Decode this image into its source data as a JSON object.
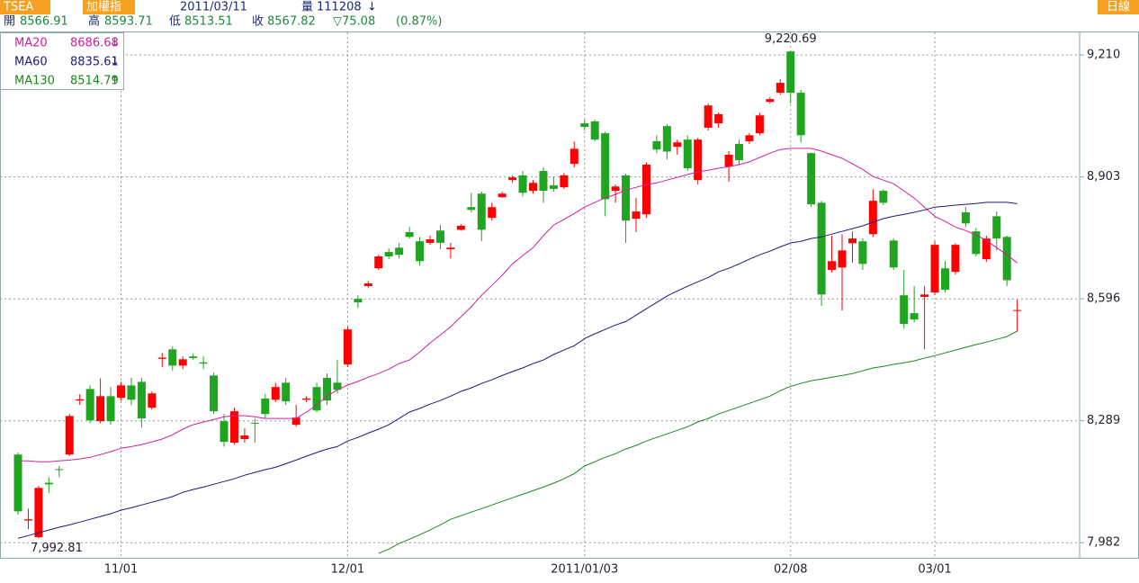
{
  "header": {
    "symbol": "TSEA",
    "index_name": "加權指",
    "date": "2011/03/11",
    "volume_label": "量",
    "volume": 111208,
    "volume_trend": "↓",
    "open_label": "開",
    "high_label": "高",
    "low_label": "低",
    "close_label": "收",
    "change": "▽75.08",
    "change_pct": "(0.87%)",
    "period": "日線"
  },
  "chart_data": {
    "type": "candlestick",
    "categories": [
      null,
      null,
      null,
      null,
      null,
      null,
      null,
      null,
      null,
      null,
      "11/01",
      null,
      null,
      null,
      null,
      null,
      null,
      null,
      null,
      null,
      null,
      null,
      null,
      null,
      null,
      null,
      null,
      null,
      null,
      null,
      null,
      null,
      "12/01",
      null,
      null,
      null,
      null,
      null,
      null,
      null,
      null,
      null,
      null,
      null,
      null,
      null,
      null,
      null,
      null,
      null,
      null,
      null,
      null,
      null,
      null,
      "2011/01/03",
      null,
      null,
      null,
      null,
      null,
      null,
      null,
      null,
      null,
      null,
      null,
      null,
      null,
      null,
      null,
      null,
      null,
      null,
      null,
      "02/08",
      null,
      null,
      null,
      null,
      null,
      null,
      null,
      null,
      null,
      null,
      null,
      null,
      null,
      "03/01",
      null,
      null,
      null,
      null,
      null,
      null,
      null,
      null
    ],
    "open": [
      8204,
      8038,
      7996,
      8133,
      8167,
      8204,
      8340,
      8369,
      8288,
      8351,
      8347,
      8378,
      8387,
      8322,
      8445,
      8469,
      8428,
      8451,
      8436,
      8403,
      8288,
      8234,
      8243,
      8284,
      8345,
      8342,
      8385,
      8279,
      8342,
      8374,
      8397,
      8385,
      8431,
      8596,
      8628,
      8673,
      8714,
      8725,
      8764,
      8741,
      8737,
      8768,
      8721,
      8770,
      8827,
      8861,
      8800,
      8852,
      8895,
      8907,
      8868,
      8918,
      8882,
      8877,
      8936,
      9038,
      9043,
      9013,
      8868,
      8907,
      8798,
      8809,
      8993,
      9031,
      8979,
      8997,
      8895,
      9027,
      9038,
      8929,
      8986,
      8993,
      9013,
      9092,
      9115,
      9219,
      9115,
      8963,
      8838,
      8669,
      8675,
      8736,
      8741,
      8759,
      8868,
      8743,
      8605,
      8560,
      8601,
      8612,
      8673,
      8664,
      8814,
      8766,
      8696,
      8804,
      8752,
      8566.91
    ],
    "high": [
      8209,
      8068,
      8125,
      8147,
      8175,
      8306,
      8356,
      8378,
      8396,
      8374,
      8387,
      8397,
      8397,
      8363,
      8460,
      8476,
      8451,
      8458,
      8451,
      8410,
      8306,
      8322,
      8270,
      8295,
      8356,
      8385,
      8397,
      8329,
      8351,
      8385,
      8408,
      8442,
      8526,
      8605,
      8641,
      8707,
      8723,
      8737,
      8777,
      8752,
      8755,
      8782,
      8737,
      8784,
      8863,
      8866,
      8838,
      8866,
      8907,
      8918,
      8895,
      8927,
      8904,
      8913,
      8992,
      9047,
      9047,
      9017,
      8884,
      8911,
      8850,
      8940,
      9008,
      9036,
      8997,
      9008,
      9002,
      9088,
      9065,
      8968,
      8997,
      9013,
      9065,
      9104,
      9149,
      9220.69,
      9122,
      8963,
      8843,
      8755,
      8759,
      8766,
      8748,
      8872,
      8872,
      8748,
      8669,
      8628,
      8628,
      8741,
      8691,
      8736,
      8827,
      8775,
      8755,
      8816,
      8755,
      8593.71
    ],
    "low": [
      8052,
      8016,
      7992.81,
      8107,
      8147,
      8200,
      8329,
      8283,
      8283,
      8279,
      8340,
      8329,
      8272,
      8317,
      8424,
      8415,
      8419,
      8442,
      8419,
      8306,
      8224,
      8229,
      8234,
      8234,
      8295,
      8336,
      8329,
      8274,
      8336,
      8311,
      8329,
      8358,
      8424,
      8573,
      8623,
      8669,
      8696,
      8698,
      8748,
      8680,
      8732,
      8721,
      8698,
      8768,
      8814,
      8741,
      8793,
      8850,
      8888,
      8854,
      8861,
      8838,
      8866,
      8873,
      8927,
      9020,
      8993,
      8804,
      8838,
      8737,
      8764,
      8800,
      8963,
      8947,
      8959,
      8918,
      8884,
      9020,
      9027,
      8891,
      8934,
      8986,
      9008,
      9088,
      9110,
      9088,
      8990,
      8827,
      8578,
      8662,
      8567,
      8687,
      8669,
      8752,
      8832,
      8669,
      8521,
      8537,
      8469,
      8605,
      8612,
      8657,
      8777,
      8703,
      8689,
      8718,
      8628,
      8513.51
    ],
    "close": [
      8061,
      8041,
      8120,
      8129,
      8165,
      8301,
      8343,
      8290,
      8351,
      8288,
      8378,
      8342,
      8295,
      8358,
      8448,
      8428,
      8444,
      8447,
      8433,
      8313,
      8236,
      8313,
      8252,
      8283,
      8306,
      8374,
      8338,
      8297,
      8345,
      8315,
      8340,
      8367,
      8519,
      8587,
      8635,
      8703,
      8703,
      8707,
      8752,
      8691,
      8746,
      8737,
      8725,
      8780,
      8820,
      8770,
      8827,
      8861,
      8902,
      8863,
      8888,
      8868,
      8873,
      8907,
      8974,
      9029,
      8997,
      8847,
      8879,
      8793,
      8816,
      8934,
      8972,
      8967,
      8990,
      8925,
      8997,
      9083,
      9061,
      8959,
      8945,
      9008,
      9058,
      9099,
      9140,
      9115,
      9008,
      8834,
      8607,
      8691,
      8718,
      8748,
      8684,
      8843,
      8838,
      8675,
      8533,
      8544,
      8607,
      8732,
      8619,
      8732,
      8786,
      8709,
      8748,
      8748,
      8642.9,
      8567.82
    ],
    "up_color": "#ff0000",
    "down_color": "#1fa51f",
    "series": [
      {
        "name": "MA20",
        "color": "#d0209c",
        "trend": "↓",
        "values": [
          8188,
          8188,
          8186,
          8186,
          8188,
          8190,
          8193,
          8197,
          8204,
          8211,
          8220,
          8224,
          8229,
          8236,
          8243,
          8254,
          8268,
          8279,
          8286,
          8292,
          8299,
          8302,
          8302,
          8299,
          8295,
          8295,
          8295,
          8295,
          8311,
          8329,
          8351,
          8367,
          8379,
          8388,
          8399,
          8408,
          8419,
          8433,
          8442,
          8462,
          8485,
          8505,
          8526,
          8551,
          8576,
          8605,
          8630,
          8655,
          8684,
          8705,
          8725,
          8755,
          8782,
          8796,
          8811,
          8827,
          8839,
          8850,
          8859,
          8870,
          8877,
          8884,
          8888,
          8895,
          8902,
          8909,
          8916,
          8920,
          8925,
          8929,
          8934,
          8941,
          8952,
          8963,
          8972,
          8975,
          8975,
          8975,
          8968,
          8959,
          8950,
          8936,
          8922,
          8904,
          8895,
          8886,
          8868,
          8850,
          8827,
          8804,
          8791,
          8777,
          8768,
          8757,
          8743,
          8725,
          8707,
          8686.68
        ]
      },
      {
        "name": "MA60",
        "color": "#1a1a80",
        "trend": "↓",
        "values": [
          7993,
          8000,
          8007,
          8014,
          8021,
          8027,
          8034,
          8041,
          8048,
          8055,
          8064,
          8070,
          8077,
          8084,
          8091,
          8098,
          8109,
          8116,
          8122,
          8129,
          8136,
          8143,
          8152,
          8159,
          8166,
          8172,
          8181,
          8190,
          8200,
          8209,
          8218,
          8224,
          8238,
          8247,
          8258,
          8268,
          8279,
          8295,
          8311,
          8320,
          8331,
          8340,
          8351,
          8363,
          8372,
          8383,
          8392,
          8403,
          8413,
          8422,
          8433,
          8442,
          8456,
          8467,
          8478,
          8496,
          8508,
          8519,
          8530,
          8539,
          8555,
          8571,
          8587,
          8603,
          8616,
          8628,
          8639,
          8650,
          8664,
          8673,
          8684,
          8696,
          8707,
          8716,
          8727,
          8737,
          8741,
          8748,
          8752,
          8759,
          8766,
          8773,
          8780,
          8789,
          8798,
          8804,
          8809,
          8814,
          8820,
          8827,
          8829,
          8832,
          8834,
          8836,
          8839,
          8839,
          8839,
          8835.61
        ]
      },
      {
        "name": "MA130",
        "color": "#1a8a1a",
        "trend": "↑",
        "values": [
          null,
          null,
          null,
          null,
          null,
          null,
          null,
          null,
          null,
          null,
          null,
          null,
          null,
          null,
          null,
          null,
          null,
          null,
          null,
          null,
          null,
          null,
          null,
          null,
          null,
          null,
          null,
          null,
          null,
          null,
          null,
          null,
          null,
          null,
          null,
          7955,
          7966,
          7980,
          7991,
          8002,
          8014,
          8027,
          8041,
          8050,
          8059,
          8068,
          8077,
          8086,
          8095,
          8104,
          8113,
          8122,
          8132,
          8143,
          8156,
          8175,
          8186,
          8197,
          8206,
          8218,
          8227,
          8238,
          8247,
          8256,
          8265,
          8274,
          8286,
          8295,
          8306,
          8315,
          8324,
          8333,
          8342,
          8351,
          8365,
          8376,
          8383,
          8390,
          8394,
          8399,
          8403,
          8408,
          8415,
          8422,
          8426,
          8431,
          8435,
          8440,
          8447,
          8453,
          8460,
          8467,
          8474,
          8481,
          8487,
          8494,
          8501,
          8514.79
        ]
      }
    ],
    "ylim": [
      7944,
      9267
    ],
    "yticks": [
      {
        "value": 7982,
        "label": "7,982"
      },
      {
        "value": 8289,
        "label": "8,289"
      },
      {
        "value": 8596,
        "label": "8,596"
      },
      {
        "value": 8903,
        "label": "8,903"
      },
      {
        "value": 9210,
        "label": "9,210"
      }
    ],
    "grid": true,
    "max_label": "9,220.69",
    "min_label": "7,992.81"
  }
}
